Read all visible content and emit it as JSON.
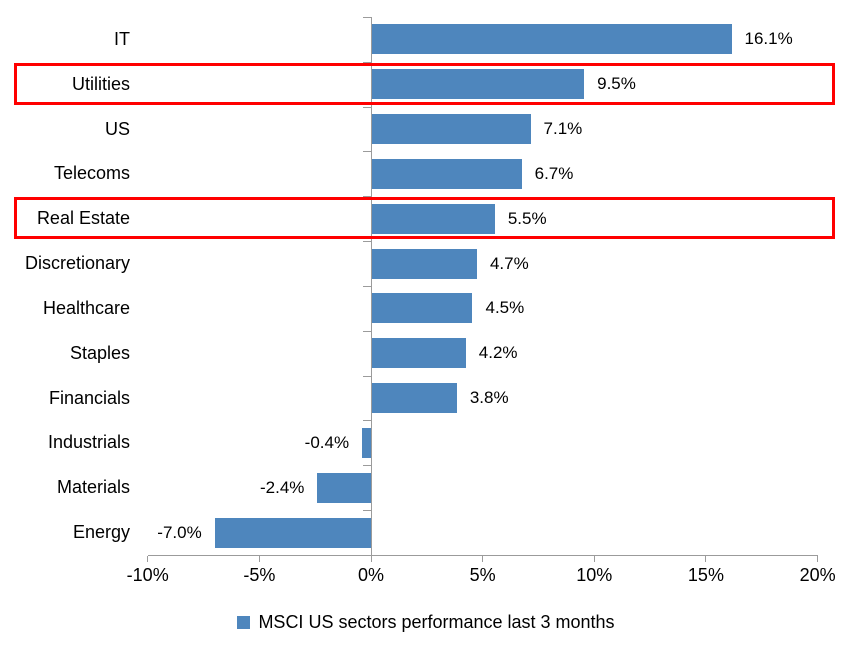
{
  "chart_data": {
    "type": "bar",
    "orientation": "horizontal",
    "title": "",
    "categories": [
      "IT",
      "Utilities",
      "US",
      "Telecoms",
      "Real Estate",
      "Discretionary",
      "Healthcare",
      "Staples",
      "Financials",
      "Industrials",
      "Materials",
      "Energy"
    ],
    "values": [
      16.1,
      9.5,
      7.1,
      6.7,
      5.5,
      4.7,
      4.5,
      4.2,
      3.8,
      -0.4,
      -2.4,
      -7.0
    ],
    "value_labels": [
      "16.1%",
      "9.5%",
      "7.1%",
      "6.7%",
      "5.5%",
      "4.7%",
      "4.5%",
      "4.2%",
      "3.8%",
      "-0.4%",
      "-2.4%",
      "-7.0%"
    ],
    "highlighted_categories": [
      "Utilities",
      "Real Estate"
    ],
    "xlim": [
      -10,
      20
    ],
    "x_ticks": [
      -10,
      -5,
      0,
      5,
      10,
      15,
      20
    ],
    "x_tick_labels": [
      "-10%",
      "-5%",
      "0%",
      "5%",
      "10%",
      "15%",
      "20%"
    ],
    "grid": false,
    "legend_position": "bottom",
    "legend": [
      {
        "label": "MSCI US sectors performance last 3 months",
        "swatch_color": "#4E86BD"
      }
    ],
    "bar_color": "#4E86BD",
    "highlight_box_color": "#FF0000",
    "axis_color": "#9B9B9B",
    "text_color": "#000000"
  }
}
